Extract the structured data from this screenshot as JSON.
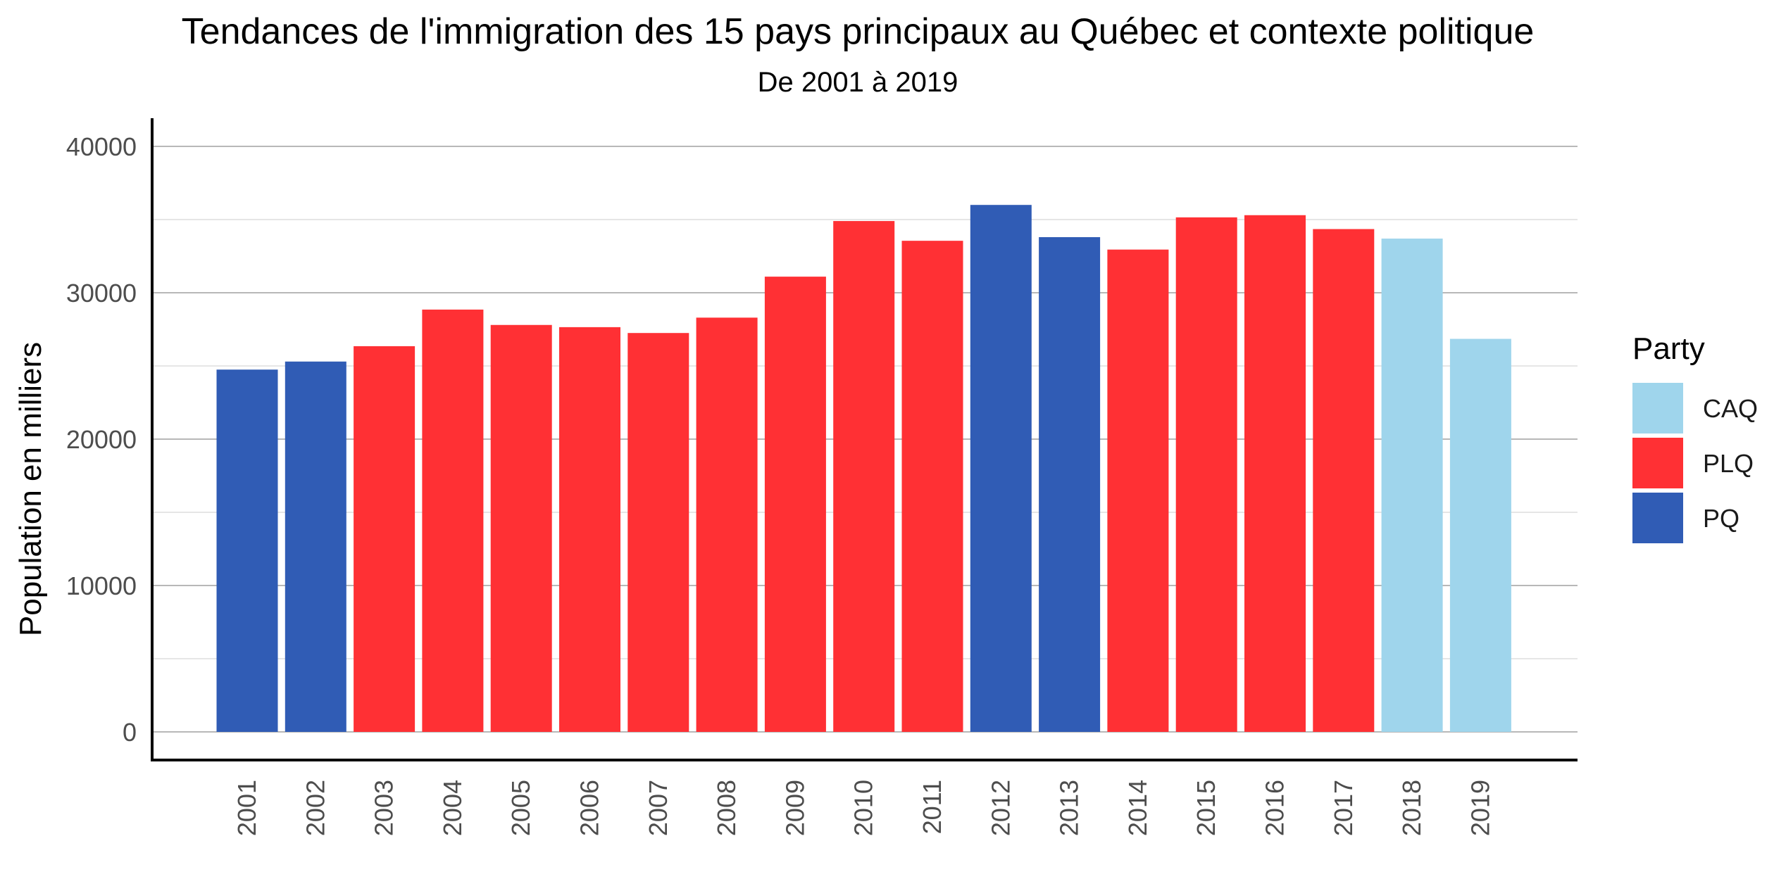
{
  "chart_data": {
    "type": "bar",
    "title": "Tendances de l'immigration des 15 pays principaux au Québec et contexte politique",
    "subtitle": "De 2001 à 2019",
    "xlabel": "",
    "ylabel": "Population en milliers",
    "ylim": [
      0,
      42000
    ],
    "yticks": [
      0,
      10000,
      20000,
      30000,
      40000
    ],
    "grid": true,
    "legend_title": "Party",
    "legend_position": "right",
    "legend": [
      {
        "name": "CAQ",
        "color": "#9fd5ec"
      },
      {
        "name": "PLQ",
        "color": "#ff3034"
      },
      {
        "name": "PQ",
        "color": "#305cb5"
      }
    ],
    "categories": [
      "2001",
      "2002",
      "2003",
      "2004",
      "2005",
      "2006",
      "2007",
      "2008",
      "2009",
      "2010",
      "2011",
      "2012",
      "2013",
      "2014",
      "2015",
      "2016",
      "2017",
      "2018",
      "2019"
    ],
    "values": [
      24750,
      25300,
      26350,
      28850,
      27800,
      27650,
      27250,
      28300,
      31100,
      34900,
      33550,
      36000,
      33800,
      32950,
      35150,
      35300,
      34350,
      33700,
      26850
    ],
    "party": [
      "PQ",
      "PQ",
      "PLQ",
      "PLQ",
      "PLQ",
      "PLQ",
      "PLQ",
      "PLQ",
      "PLQ",
      "PLQ",
      "PLQ",
      "PQ",
      "PQ",
      "PLQ",
      "PLQ",
      "PLQ",
      "PLQ",
      "CAQ",
      "CAQ"
    ]
  }
}
